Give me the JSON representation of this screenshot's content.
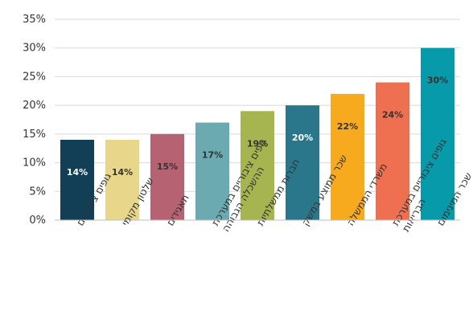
{
  "chart_data": {
    "type": "bar",
    "title": "",
    "xlabel": "",
    "ylabel": "",
    "ylim": [
      0,
      35
    ],
    "yticks": [
      "0%",
      "5%",
      "10%",
      "15%",
      "20%",
      "25%",
      "30%",
      "35%"
    ],
    "grid": true,
    "legend": "none",
    "categories": [
      [
        "גופים ציבוריים"
      ],
      [
        "שלטון מקומי"
      ],
      [
        "תאגידים"
      ],
      [
        "גופים ציבוריים במערכת",
        "ההשכלה הגבוהה"
      ],
      [
        "חברות ממשלתיות"
      ],
      [
        "שכר ממוצע במשק"
      ],
      [
        "משרדי הממשלה"
      ],
      [
        "גופים ציבוריים במערכת",
        "הבריאות"
      ],
      [
        "שכר המינימום"
      ]
    ],
    "values": [
      14,
      14,
      15,
      17,
      19,
      20,
      22,
      24,
      30
    ],
    "value_labels": [
      "14%",
      "14%",
      "15%",
      "17%",
      "19%",
      "20%",
      "22%",
      "24%",
      "30%"
    ],
    "colors": [
      "#123f56",
      "#e8d68a",
      "#b76273",
      "#6aaab0",
      "#a6b550",
      "#2a778c",
      "#f8aa1f",
      "#ef7050",
      "#069aaa"
    ],
    "label_colors": [
      "#ffffff",
      "#333333",
      "#333333",
      "#333333",
      "#333333",
      "#ffffff",
      "#333333",
      "#333333",
      "#333333"
    ]
  }
}
